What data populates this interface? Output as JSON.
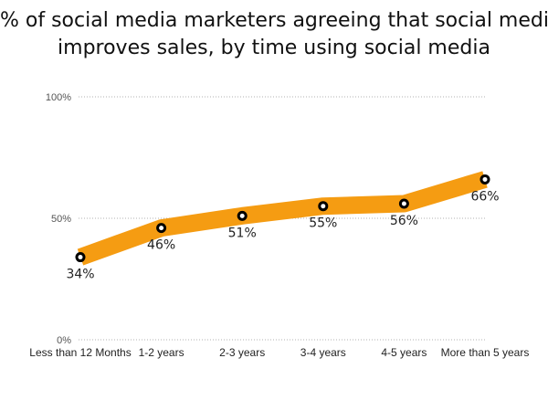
{
  "title_lines": [
    "% of social media marketers agreeing that social media",
    "improves sales, by time using social media"
  ],
  "colors": {
    "line": "#f59c12",
    "marker_stroke": "#000000",
    "marker_fill": "#ffffff",
    "grid": "#b0b0b0"
  },
  "chart_data": {
    "type": "line",
    "title": "% of social media marketers agreeing that social media improves sales, by time using social media",
    "categories": [
      "Less than 12 Months",
      "1-2 years",
      "2-3 years",
      "3-4 years",
      "4-5 years",
      "More than 5 years"
    ],
    "values": [
      34,
      46,
      51,
      55,
      56,
      66
    ],
    "data_labels": [
      "34%",
      "46%",
      "51%",
      "55%",
      "56%",
      "66%"
    ],
    "y_ticks": [
      0,
      50,
      100
    ],
    "y_tick_labels": [
      "0%",
      "50%",
      "100%"
    ],
    "ylim": [
      0,
      100
    ],
    "grid": true,
    "xlabel": "",
    "ylabel": ""
  }
}
